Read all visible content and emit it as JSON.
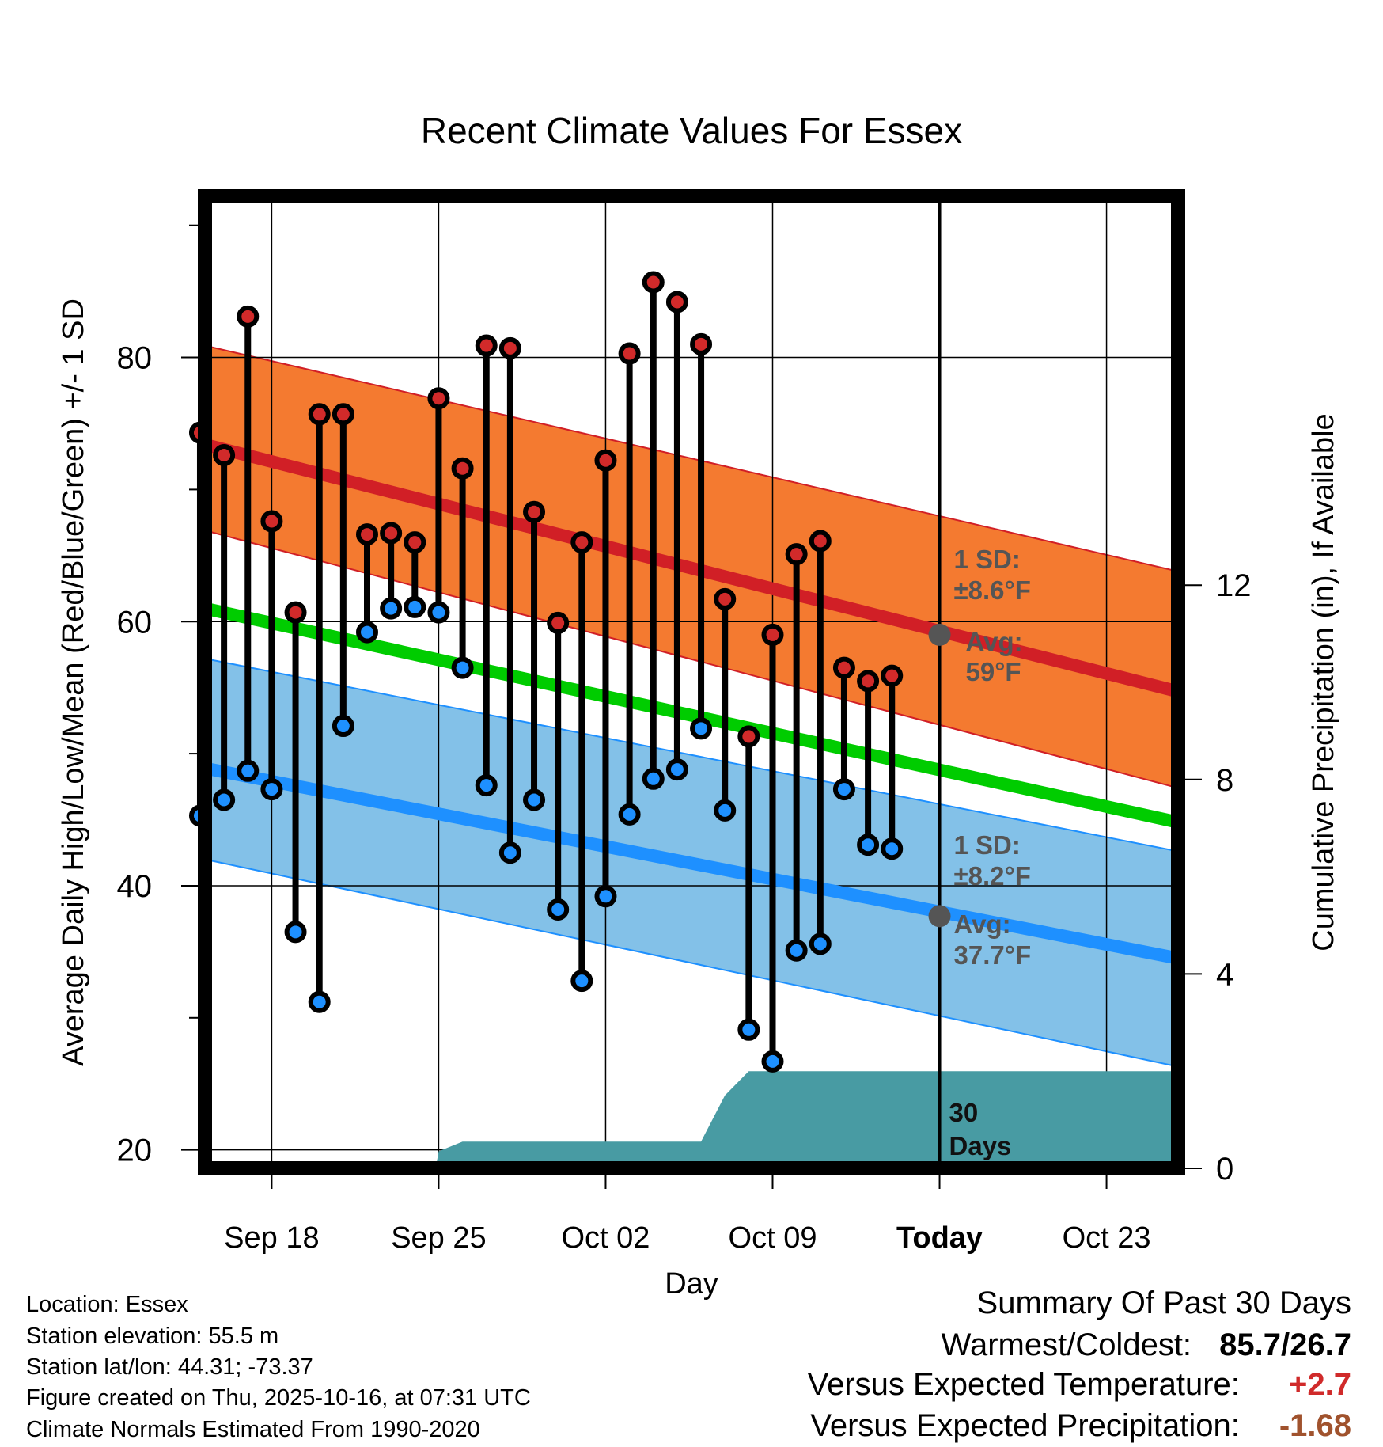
{
  "title": "Recent Climate Values For Essex",
  "chart_data": {
    "type": "line",
    "title": "Recent Climate Values For Essex",
    "xlabel": "Day",
    "ylabel": "Average Daily High/Low/Mean (Red/Blue/Green) +/- 1 SD",
    "y2label": "Cumulative Precipitation (in), If Available",
    "x_range": [
      -1.8,
      39
    ],
    "ylim": [
      18.6,
      92.2
    ],
    "y2lim": [
      0,
      20
    ],
    "x_ticks": [
      {
        "day": 1,
        "label": "Sep 18"
      },
      {
        "day": 8,
        "label": "Sep 25"
      },
      {
        "day": 15,
        "label": "Oct 02"
      },
      {
        "day": 22,
        "label": "Oct 09"
      },
      {
        "day": 29,
        "label": "Today"
      },
      {
        "day": 36,
        "label": "Oct 23"
      }
    ],
    "y_ticks": [
      20,
      40,
      60,
      80
    ],
    "y_minor_ticks": [
      30,
      50,
      70,
      90
    ],
    "y2_ticks": [
      0,
      4,
      8,
      12
    ],
    "normals": {
      "x_start": -1.8,
      "x_end": 39,
      "high_mean": [
        73.4,
        54.7
      ],
      "high_upper": [
        80.9,
        63.8
      ],
      "high_lower": [
        66.9,
        47.4
      ],
      "mean": [
        61.0,
        44.8
      ],
      "low_mean": [
        48.9,
        34.5
      ],
      "low_upper": [
        57.2,
        42.6
      ],
      "low_lower": [
        42.0,
        26.3
      ]
    },
    "days": [
      -2,
      -1,
      0,
      1,
      2,
      3,
      4,
      5,
      6,
      7,
      8,
      9,
      10,
      11,
      12,
      13,
      14,
      15,
      16,
      17,
      18,
      19,
      20,
      21,
      22,
      23,
      24,
      25,
      26,
      27,
      28
    ],
    "highs": [
      74.3,
      72.6,
      83.1,
      67.6,
      60.7,
      75.7,
      75.7,
      66.6,
      66.7,
      66.0,
      76.9,
      71.6,
      80.9,
      80.7,
      68.3,
      59.9,
      66.0,
      72.2,
      80.3,
      85.7,
      84.2,
      81.0,
      61.7,
      51.3,
      59.0,
      65.1,
      66.1,
      56.5,
      55.5,
      55.9,
      null
    ],
    "lows": [
      45.3,
      46.5,
      48.7,
      47.3,
      36.5,
      31.2,
      52.1,
      59.2,
      61.0,
      61.1,
      60.7,
      56.5,
      47.6,
      42.5,
      46.5,
      38.2,
      32.8,
      39.2,
      45.4,
      48.1,
      48.8,
      51.9,
      45.7,
      29.1,
      26.7,
      35.1,
      35.6,
      47.3,
      43.1,
      42.8,
      null
    ],
    "precip_cumulative": {
      "x": [
        -1.8,
        6.8,
        7.0,
        7.9,
        8.0,
        9.0,
        19.0,
        20.0,
        21.0,
        29.0,
        39.0
      ],
      "y": [
        0.0,
        0.0,
        0.05,
        0.07,
        0.35,
        0.55,
        0.55,
        1.5,
        2.0,
        2.0,
        2.0
      ]
    },
    "annotations": {
      "high_sd": "1 SD:",
      "high_sd_value": "±8.6°F",
      "high_avg": "Avg:",
      "high_avg_value": "59°F",
      "low_sd": "1 SD:",
      "low_sd_value": "±8.2°F",
      "low_avg": "Avg:",
      "low_avg_value": "37.7°F",
      "period_value": "30",
      "period_unit": "Days"
    },
    "today_markers": {
      "day": 29,
      "high_avg": 59.0,
      "low_avg": 37.7
    },
    "colors": {
      "high_band": "#F47A30",
      "high_line": "#D11F26",
      "mean_line": "#00CC00",
      "low_band": "#83C1E8",
      "low_line": "#1E90FF",
      "precip": "#489BA3",
      "high_point": "#D12A2A",
      "low_point": "#1E90FF",
      "annotation": "#555555",
      "warm_value": "#D02A2A",
      "precip_value": "#A0522D"
    }
  },
  "info": {
    "location": "Location: Essex",
    "elevation": "Station elevation: 55.5 m",
    "latlon": "Station lat/lon: 44.31; -73.37",
    "created": "Figure created on Thu, 2025-10-16, at 07:31 UTC",
    "normals": "Climate Normals Estimated From 1990-2020"
  },
  "summary": {
    "heading": "Summary Of Past 30 Days",
    "warm_cold_label": "Warmest/Coldest:",
    "warm_cold_value": "85.7/26.7",
    "temp_label": "Versus Expected Temperature:",
    "temp_value": "+2.7",
    "precip_label": "Versus Expected Precipitation:",
    "precip_value": "-1.68"
  }
}
